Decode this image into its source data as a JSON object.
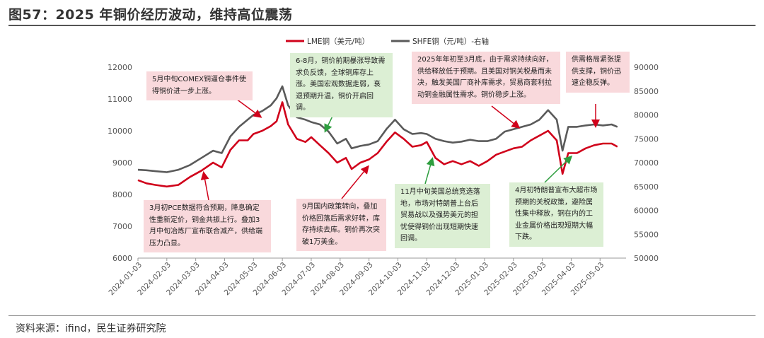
{
  "title": "图57：2025 年铜价经历波动，维持高位震荡",
  "source": "资料来源：ifind，民生证券研究院",
  "colors": {
    "lme": "#d0021b",
    "shfe": "#5a5a5a",
    "pink": "#f9d9dc",
    "green": "#dcefd4"
  },
  "chart_data": {
    "type": "line",
    "x_labels": [
      "2024-01-03",
      "2024-02-03",
      "2024-03-03",
      "2024-04-03",
      "2024-05-03",
      "2024-06-03",
      "2024-07-03",
      "2024-08-03",
      "2024-09-03",
      "2024-10-03",
      "2024-11-03",
      "2024-12-03",
      "2025-01-03",
      "2025-02-03",
      "2025-03-03",
      "2025-04-03",
      "2025-05-03"
    ],
    "y_left": {
      "min": 6000,
      "max": 12000,
      "step": 1000,
      "ticks": [
        "12000",
        "11000",
        "10000",
        "9000",
        "8000",
        "7000",
        "6000"
      ]
    },
    "y_right": {
      "min": 50000,
      "max": 90000,
      "step": 5000,
      "ticks": [
        "90000",
        "85000",
        "80000",
        "75000",
        "70000",
        "65000",
        "60000",
        "55000",
        "50000"
      ]
    },
    "series": [
      {
        "name": "LME铜（美元/吨）",
        "axis": "left",
        "values": [
          [
            0,
            8450
          ],
          [
            0.3,
            8350
          ],
          [
            0.6,
            8300
          ],
          [
            1.0,
            8250
          ],
          [
            1.4,
            8300
          ],
          [
            1.8,
            8550
          ],
          [
            2.2,
            8750
          ],
          [
            2.6,
            9000
          ],
          [
            2.9,
            8850
          ],
          [
            3.2,
            9400
          ],
          [
            3.5,
            9700
          ],
          [
            3.8,
            9700
          ],
          [
            4.0,
            9900
          ],
          [
            4.3,
            10000
          ],
          [
            4.6,
            10150
          ],
          [
            4.8,
            10300
          ],
          [
            5.0,
            10900
          ],
          [
            5.2,
            10200
          ],
          [
            5.5,
            9750
          ],
          [
            5.8,
            9650
          ],
          [
            6.0,
            9800
          ],
          [
            6.3,
            9550
          ],
          [
            6.6,
            9300
          ],
          [
            6.9,
            9000
          ],
          [
            7.2,
            9150
          ],
          [
            7.4,
            8800
          ],
          [
            7.7,
            9000
          ],
          [
            8.0,
            9100
          ],
          [
            8.3,
            9300
          ],
          [
            8.6,
            9650
          ],
          [
            8.9,
            9950
          ],
          [
            9.2,
            9750
          ],
          [
            9.5,
            9500
          ],
          [
            9.8,
            9550
          ],
          [
            10.0,
            9650
          ],
          [
            10.3,
            9150
          ],
          [
            10.6,
            8950
          ],
          [
            10.9,
            9050
          ],
          [
            11.2,
            8950
          ],
          [
            11.5,
            9050
          ],
          [
            11.8,
            8900
          ],
          [
            12.1,
            9050
          ],
          [
            12.4,
            9250
          ],
          [
            12.7,
            9350
          ],
          [
            13.0,
            9450
          ],
          [
            13.3,
            9500
          ],
          [
            13.6,
            9700
          ],
          [
            13.9,
            9850
          ],
          [
            14.2,
            10000
          ],
          [
            14.5,
            9700
          ],
          [
            14.7,
            8650
          ],
          [
            14.9,
            9300
          ],
          [
            15.2,
            9300
          ],
          [
            15.5,
            9450
          ],
          [
            15.8,
            9550
          ],
          [
            16.1,
            9600
          ],
          [
            16.4,
            9600
          ],
          [
            16.6,
            9500
          ]
        ]
      },
      {
        "name": "SHFE铜（元/吨）-右轴",
        "axis": "right",
        "values": [
          [
            0,
            68500
          ],
          [
            0.3,
            68400
          ],
          [
            0.6,
            68200
          ],
          [
            1.0,
            68000
          ],
          [
            1.4,
            68500
          ],
          [
            1.8,
            69500
          ],
          [
            2.2,
            71000
          ],
          [
            2.6,
            72500
          ],
          [
            2.9,
            72000
          ],
          [
            3.2,
            75500
          ],
          [
            3.5,
            77500
          ],
          [
            3.8,
            79000
          ],
          [
            4.0,
            80000
          ],
          [
            4.3,
            80800
          ],
          [
            4.6,
            82000
          ],
          [
            4.8,
            83500
          ],
          [
            5.0,
            86000
          ],
          [
            5.2,
            82000
          ],
          [
            5.5,
            79500
          ],
          [
            5.8,
            79000
          ],
          [
            6.0,
            78500
          ],
          [
            6.3,
            78000
          ],
          [
            6.6,
            76500
          ],
          [
            6.9,
            74000
          ],
          [
            7.2,
            75000
          ],
          [
            7.4,
            73000
          ],
          [
            7.7,
            73500
          ],
          [
            8.0,
            73800
          ],
          [
            8.3,
            74500
          ],
          [
            8.6,
            77000
          ],
          [
            8.9,
            79000
          ],
          [
            9.2,
            77000
          ],
          [
            9.5,
            76000
          ],
          [
            9.8,
            76200
          ],
          [
            10.0,
            76000
          ],
          [
            10.3,
            75000
          ],
          [
            10.6,
            74500
          ],
          [
            10.9,
            74200
          ],
          [
            11.2,
            74400
          ],
          [
            11.5,
            74800
          ],
          [
            11.8,
            74500
          ],
          [
            12.1,
            74500
          ],
          [
            12.4,
            75000
          ],
          [
            12.7,
            76500
          ],
          [
            13.0,
            77000
          ],
          [
            13.3,
            77500
          ],
          [
            13.6,
            78000
          ],
          [
            13.9,
            79000
          ],
          [
            14.2,
            81000
          ],
          [
            14.5,
            79000
          ],
          [
            14.7,
            72500
          ],
          [
            14.9,
            77500
          ],
          [
            15.2,
            77500
          ],
          [
            15.5,
            77800
          ],
          [
            15.8,
            78000
          ],
          [
            16.1,
            77800
          ],
          [
            16.4,
            78000
          ],
          [
            16.6,
            77500
          ]
        ]
      }
    ],
    "legend_position": "top-center"
  },
  "annotations": [
    {
      "id": "a1",
      "color": "pink",
      "text": "5月中旬COMEX铜逼仓事件使得铜价进一步上涨。"
    },
    {
      "id": "a2",
      "color": "green",
      "text": "6-8月，铜价前期暴涨导致需求负反馈，全球铜库存上涨。美国宏观数据走弱，衰退预期升温，铜价开启回调。"
    },
    {
      "id": "a3",
      "color": "pink",
      "text": "2025年年初至3月底，由于需求持续向好，供给释放低于预期。且美国对铜关税悬而未决，触发美国厂商补库需求，贸易商套利拉动铜金融属性需求。铜价稳步上涨。"
    },
    {
      "id": "a4",
      "color": "pink",
      "text": "供需格局紧张提供支撑，铜价迅速企稳反弹。"
    },
    {
      "id": "a5",
      "color": "pink",
      "text": "3月初PCE数据符合预期，降息确定性重新定价，铜金共振上行。叠加3月中旬冶炼厂宣布联合减产，供给端压力凸显。"
    },
    {
      "id": "a6",
      "color": "pink",
      "text": "9月国内政策转向，叠加价格回落后需求好转，库存持续去库。铜价再次突破1万美金。"
    },
    {
      "id": "a7",
      "color": "green",
      "text": "11月中旬美国总统竞选落地，市场对特朗普上台后贸易战以及强势美元的担忧使得铜价出现短期快速回调。"
    },
    {
      "id": "a8",
      "color": "green",
      "text": "4月初特朗普宣布大超市场预期的关税政策，避险属性集中释放，铜在内的工业金属价格出现短期大幅下跌。"
    }
  ]
}
